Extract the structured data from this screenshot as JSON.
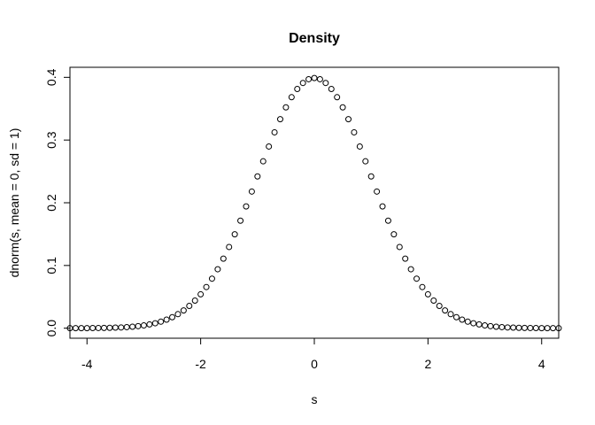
{
  "chart_data": {
    "type": "scatter",
    "title": "Density",
    "xlabel": "s",
    "ylabel": "dnorm(s, mean = 0, sd = 1)",
    "xlim": [
      -4.3,
      4.3
    ],
    "ylim": [
      -0.016,
      0.416
    ],
    "x_ticks": [
      -4,
      -2,
      0,
      2,
      4
    ],
    "x_tick_labels": [
      "-4",
      "-2",
      "0",
      "2",
      "4"
    ],
    "y_ticks": [
      0.0,
      0.1,
      0.2,
      0.3,
      0.4
    ],
    "y_tick_labels": [
      "0.0",
      "0.1",
      "0.2",
      "0.3",
      "0.4"
    ],
    "grid": false,
    "legend": "none",
    "point_color": "#000000",
    "point_style": "open-circle",
    "series": [
      {
        "x": [
          -4.3,
          -4.2,
          -4.1,
          -4.0,
          -3.9,
          -3.8,
          -3.7,
          -3.6,
          -3.5,
          -3.4,
          -3.3,
          -3.2,
          -3.1,
          -3.0,
          -2.9,
          -2.8,
          -2.7,
          -2.6,
          -2.5,
          -2.4,
          -2.3,
          -2.2,
          -2.1,
          -2.0,
          -1.9,
          -1.8,
          -1.7,
          -1.6,
          -1.5,
          -1.4,
          -1.3,
          -1.2,
          -1.1,
          -1.0,
          -0.9,
          -0.8,
          -0.7,
          -0.6,
          -0.5,
          -0.4,
          -0.3,
          -0.2,
          -0.1,
          0.0,
          0.1,
          0.2,
          0.3,
          0.4,
          0.5,
          0.6,
          0.7,
          0.8,
          0.9,
          1.0,
          1.1,
          1.2,
          1.3,
          1.4,
          1.5,
          1.6,
          1.7,
          1.8,
          1.9,
          2.0,
          2.1,
          2.2,
          2.3,
          2.4,
          2.5,
          2.6,
          2.7,
          2.8,
          2.9,
          3.0,
          3.1,
          3.2,
          3.3,
          3.4,
          3.5,
          3.6,
          3.7,
          3.8,
          3.9,
          4.0,
          4.1,
          4.2,
          4.3
        ],
        "y": [
          0.0,
          0.0001,
          0.0001,
          0.0001,
          0.0002,
          0.0003,
          0.0004,
          0.0006,
          0.0009,
          0.0012,
          0.0017,
          0.0024,
          0.0033,
          0.0044,
          0.006,
          0.0079,
          0.0104,
          0.0136,
          0.0175,
          0.0224,
          0.0283,
          0.0355,
          0.044,
          0.054,
          0.0656,
          0.079,
          0.094,
          0.1109,
          0.1295,
          0.1497,
          0.1714,
          0.1942,
          0.2179,
          0.242,
          0.2661,
          0.2897,
          0.3123,
          0.3332,
          0.3521,
          0.3683,
          0.3814,
          0.391,
          0.397,
          0.3989,
          0.397,
          0.391,
          0.3814,
          0.3683,
          0.3521,
          0.3332,
          0.3123,
          0.2897,
          0.2661,
          0.242,
          0.2179,
          0.1942,
          0.1714,
          0.1497,
          0.1295,
          0.1109,
          0.094,
          0.079,
          0.0656,
          0.054,
          0.044,
          0.0355,
          0.0283,
          0.0224,
          0.0175,
          0.0136,
          0.0104,
          0.0079,
          0.006,
          0.0044,
          0.0033,
          0.0024,
          0.0017,
          0.0012,
          0.0009,
          0.0006,
          0.0004,
          0.0003,
          0.0002,
          0.0001,
          0.0001,
          0.0001,
          0.0
        ]
      }
    ]
  }
}
